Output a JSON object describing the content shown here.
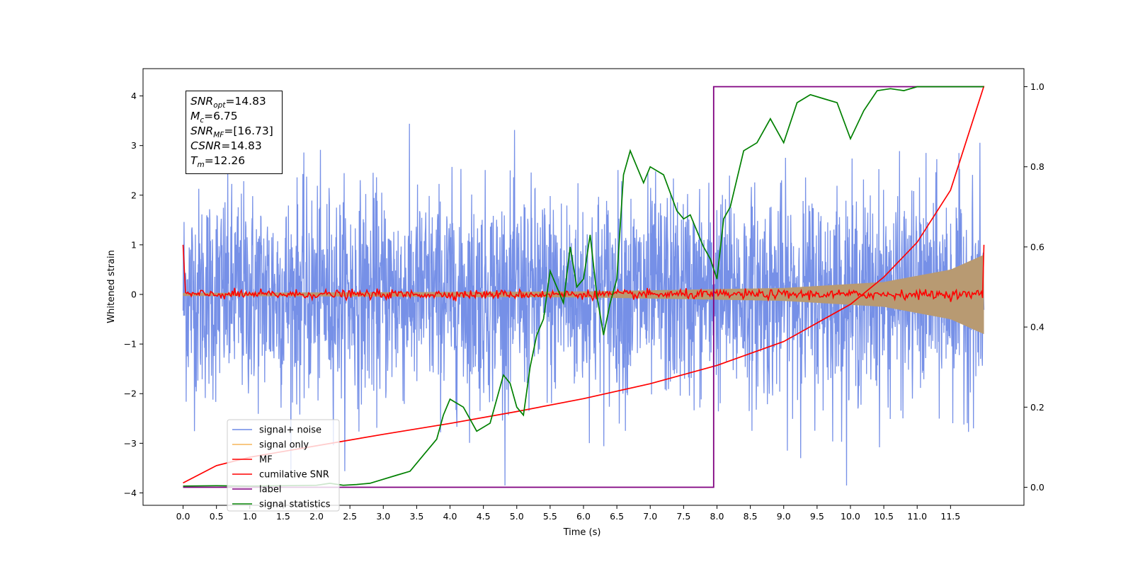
{
  "chart_data": {
    "type": "line",
    "xlabel": "Time (s)",
    "ylabel": "Whitened strain",
    "xlim": [
      -0.6,
      12.6
    ],
    "ylim": [
      -4.25,
      4.55
    ],
    "y2lim": [
      -0.045,
      1.045
    ],
    "x_ticks": [
      "0.0",
      "0.5",
      "1.0",
      "1.5",
      "2.0",
      "2.5",
      "3.0",
      "3.5",
      "4.0",
      "4.5",
      "5.0",
      "5.5",
      "6.0",
      "6.5",
      "7.0",
      "7.5",
      "8.0",
      "8.5",
      "9.0",
      "9.5",
      "10.0",
      "10.5",
      "11.0",
      "11.5"
    ],
    "y_ticks": [
      "4",
      "3",
      "2",
      "1",
      "0",
      "−1",
      "−2",
      "−3",
      "−4"
    ],
    "y2_ticks": [
      "1.0",
      "0.8",
      "0.6",
      "0.4",
      "0.2",
      "0.0"
    ],
    "stats": {
      "snr_opt": "=14.83",
      "mc": "=6.75",
      "snr_mf": "=[16.73]",
      "csnr": "=14.83",
      "tm": "=12.26"
    },
    "legend": {
      "placement": "lower-left",
      "entries": [
        {
          "label": "signal+ noise",
          "color": "#6f8ae6"
        },
        {
          "label": "signal only",
          "color": "#f5b65a"
        },
        {
          "label": "MF",
          "color": "#ff0000"
        },
        {
          "label": "cumilative SNR",
          "color": "#ff0000"
        },
        {
          "label": "label",
          "color": "#800080"
        },
        {
          "label": "signal statistics",
          "color": "#008000"
        }
      ]
    },
    "series": [
      {
        "name": "signal+ noise",
        "color": "#6f8ae6",
        "description_range": [
          -3.85,
          4.2
        ],
        "x_range": [
          0.0,
          12.0
        ]
      },
      {
        "name": "signal only",
        "color": "#f5b65a",
        "amplitude_envelope": [
          [
            0.0,
            0.03
          ],
          [
            6.0,
            0.06
          ],
          [
            9.0,
            0.13
          ],
          [
            10.5,
            0.25
          ],
          [
            11.5,
            0.5
          ],
          [
            12.0,
            0.8
          ]
        ]
      },
      {
        "name": "MF",
        "color": "#ff0000",
        "x": [
          0.0,
          0.02,
          12.0,
          12.02
        ],
        "y": [
          1.0,
          0.0,
          0.0,
          1.0
        ]
      },
      {
        "name": "cumilative SNR",
        "color": "#ff0000",
        "x": [
          0.0,
          0.5,
          1.0,
          2.0,
          3.0,
          4.0,
          5.0,
          6.0,
          7.0,
          8.0,
          9.0,
          10.0,
          10.5,
          11.0,
          11.5,
          12.0
        ],
        "y": [
          -3.8,
          -3.45,
          -3.28,
          -3.05,
          -2.82,
          -2.6,
          -2.36,
          -2.1,
          -1.8,
          -1.43,
          -0.95,
          -0.2,
          0.35,
          1.05,
          2.1,
          4.2
        ]
      },
      {
        "name": "label",
        "color": "#800080",
        "axis": "right",
        "x": [
          0.0,
          7.95,
          7.95,
          12.0
        ],
        "y": [
          0.0,
          0.0,
          1.0,
          1.0
        ]
      },
      {
        "name": "signal statistics",
        "color": "#008000",
        "axis": "right",
        "x": [
          0.0,
          0.5,
          1.0,
          1.5,
          2.0,
          2.2,
          2.4,
          2.6,
          2.8,
          3.0,
          3.2,
          3.4,
          3.6,
          3.8,
          3.9,
          4.0,
          4.2,
          4.4,
          4.6,
          4.7,
          4.8,
          4.9,
          5.0,
          5.1,
          5.2,
          5.3,
          5.4,
          5.5,
          5.6,
          5.7,
          5.8,
          5.9,
          6.0,
          6.1,
          6.2,
          6.3,
          6.4,
          6.5,
          6.6,
          6.7,
          6.8,
          6.9,
          7.0,
          7.2,
          7.4,
          7.5,
          7.6,
          7.7,
          7.8,
          7.9,
          8.0,
          8.1,
          8.2,
          8.4,
          8.6,
          8.8,
          9.0,
          9.2,
          9.4,
          9.6,
          9.8,
          10.0,
          10.2,
          10.4,
          10.6,
          10.8,
          11.0,
          11.5,
          12.0
        ],
        "y": [
          0.003,
          0.004,
          0.003,
          0.004,
          0.005,
          0.01,
          0.005,
          0.007,
          0.01,
          0.02,
          0.03,
          0.04,
          0.08,
          0.12,
          0.18,
          0.22,
          0.2,
          0.14,
          0.16,
          0.22,
          0.28,
          0.26,
          0.2,
          0.18,
          0.3,
          0.38,
          0.42,
          0.54,
          0.5,
          0.46,
          0.6,
          0.5,
          0.52,
          0.63,
          0.48,
          0.38,
          0.46,
          0.52,
          0.78,
          0.84,
          0.8,
          0.76,
          0.8,
          0.78,
          0.69,
          0.67,
          0.68,
          0.64,
          0.6,
          0.57,
          0.52,
          0.67,
          0.7,
          0.84,
          0.86,
          0.92,
          0.86,
          0.96,
          0.98,
          0.97,
          0.96,
          0.87,
          0.94,
          0.99,
          0.995,
          0.99,
          1.0,
          1.0,
          1.0
        ]
      }
    ]
  }
}
